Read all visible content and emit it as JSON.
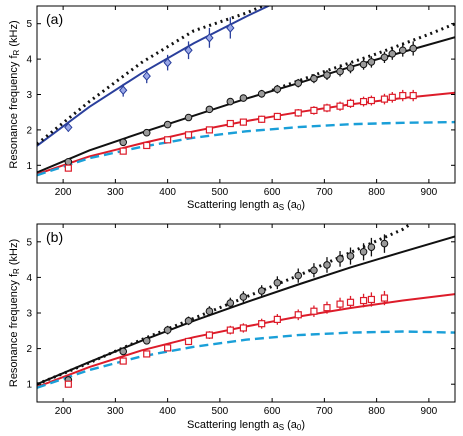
{
  "chart_data": [
    {
      "type": "scatter",
      "panel_label": "(a)",
      "xlabel": "Scattering length a",
      "xlabel_sub": "S",
      "xlabel_unit": "(a",
      "xlabel_unit_sub": "0",
      "xlabel_close": ")",
      "ylabel": "Resonance frequency f",
      "ylabel_sub": "R",
      "ylabel_unit": " (kHz)",
      "xlim": [
        150,
        950
      ],
      "ylim": [
        0.5,
        5.5
      ],
      "xticks": [
        200,
        300,
        400,
        500,
        600,
        700,
        800,
        900
      ],
      "yticks": [
        1,
        2,
        3,
        4,
        5
      ],
      "colors": {
        "blue": "#2a3f9c",
        "blue_fill": "#9aa8e8",
        "black": "#111111",
        "grey_fill": "#9a9a9a",
        "red": "#dd1c2a",
        "cyan": "#1a9fd8"
      },
      "series": [
        {
          "marker": "diamond",
          "color": "blue",
          "x": [
            210,
            315,
            360,
            400,
            440,
            480,
            520
          ],
          "y": [
            2.07,
            3.12,
            3.52,
            3.9,
            4.25,
            4.6,
            4.88
          ],
          "err": [
            0.12,
            0.18,
            0.2,
            0.22,
            0.25,
            0.28,
            0.3
          ]
        },
        {
          "marker": "circle",
          "color": "black",
          "x": [
            210,
            315,
            360,
            400,
            440,
            480,
            520,
            545,
            580,
            610,
            650,
            680,
            705,
            730,
            750,
            775,
            790,
            815,
            830,
            850,
            870
          ],
          "y": [
            1.1,
            1.65,
            1.92,
            2.15,
            2.35,
            2.58,
            2.8,
            2.9,
            3.02,
            3.15,
            3.32,
            3.45,
            3.55,
            3.65,
            3.75,
            3.85,
            3.92,
            4.05,
            4.15,
            4.25,
            4.3
          ],
          "err": [
            0.08,
            0.08,
            0.08,
            0.08,
            0.09,
            0.1,
            0.1,
            0.1,
            0.11,
            0.12,
            0.12,
            0.13,
            0.14,
            0.14,
            0.15,
            0.15,
            0.16,
            0.16,
            0.17,
            0.18,
            0.2
          ]
        },
        {
          "marker": "square",
          "color": "red",
          "x": [
            210,
            315,
            360,
            400,
            440,
            480,
            520,
            545,
            580,
            610,
            650,
            680,
            705,
            730,
            750,
            775,
            790,
            815,
            830,
            850,
            870
          ],
          "y": [
            0.92,
            1.4,
            1.56,
            1.72,
            1.86,
            2.0,
            2.18,
            2.22,
            2.3,
            2.38,
            2.48,
            2.55,
            2.62,
            2.67,
            2.75,
            2.8,
            2.83,
            2.87,
            2.92,
            2.97,
            2.97
          ],
          "err": [
            0.06,
            0.07,
            0.07,
            0.07,
            0.08,
            0.08,
            0.09,
            0.1,
            0.1,
            0.1,
            0.11,
            0.12,
            0.12,
            0.13,
            0.13,
            0.14,
            0.14,
            0.15,
            0.15,
            0.16,
            0.16
          ]
        }
      ],
      "curves": [
        {
          "style": "solid",
          "color": "blue",
          "x": [
            150,
            250,
            350,
            450,
            550,
            600
          ],
          "y": [
            1.55,
            2.65,
            3.6,
            4.45,
            5.2,
            5.55
          ]
        },
        {
          "style": "dotted",
          "color": "black",
          "x": [
            150,
            250,
            350,
            450,
            550,
            590
          ],
          "y": [
            1.6,
            2.8,
            3.9,
            4.8,
            5.3,
            5.55
          ]
        },
        {
          "style": "solid",
          "color": "black",
          "x": [
            150,
            250,
            350,
            450,
            550,
            650,
            750,
            850,
            950
          ],
          "y": [
            0.8,
            1.42,
            1.92,
            2.4,
            2.88,
            3.32,
            3.78,
            4.2,
            4.62
          ]
        },
        {
          "style": "dotted",
          "color": "black",
          "x": [
            600,
            700,
            800,
            900,
            950
          ],
          "y": [
            3.12,
            3.65,
            4.15,
            4.7,
            5.0
          ]
        },
        {
          "style": "solid",
          "color": "red",
          "x": [
            150,
            250,
            350,
            450,
            550,
            650,
            750,
            850,
            950
          ],
          "y": [
            0.75,
            1.25,
            1.62,
            1.96,
            2.25,
            2.5,
            2.72,
            2.9,
            3.05
          ]
        },
        {
          "style": "dashed",
          "color": "cyan",
          "x": [
            150,
            250,
            350,
            450,
            550,
            650,
            750,
            850,
            950
          ],
          "y": [
            0.72,
            1.2,
            1.52,
            1.78,
            1.96,
            2.08,
            2.16,
            2.2,
            2.22
          ]
        }
      ]
    },
    {
      "type": "scatter",
      "panel_label": "(b)",
      "xlabel": "Scattering length a",
      "xlabel_sub": "S",
      "xlabel_unit": "(a",
      "xlabel_unit_sub": "0",
      "xlabel_close": ")",
      "ylabel": "Resonance frequency f",
      "ylabel_sub": "R",
      "ylabel_unit": " (kHz)",
      "xlim": [
        150,
        950
      ],
      "ylim": [
        0.5,
        5.5
      ],
      "xticks": [
        200,
        300,
        400,
        500,
        600,
        700,
        800,
        900
      ],
      "yticks": [
        1,
        2,
        3,
        4,
        5
      ],
      "colors": {
        "black": "#111111",
        "grey_fill": "#9a9a9a",
        "red": "#dd1c2a",
        "cyan": "#1a9fd8"
      },
      "series": [
        {
          "marker": "circle",
          "color": "black",
          "x": [
            210,
            315,
            360,
            400,
            440,
            480,
            520,
            545,
            580,
            610,
            650,
            680,
            705,
            730,
            750,
            775,
            790,
            815
          ],
          "y": [
            1.12,
            1.92,
            2.22,
            2.52,
            2.78,
            3.05,
            3.28,
            3.45,
            3.62,
            3.85,
            4.05,
            4.2,
            4.35,
            4.52,
            4.6,
            4.72,
            4.85,
            4.95
          ],
          "err": [
            0.08,
            0.1,
            0.1,
            0.12,
            0.12,
            0.14,
            0.15,
            0.16,
            0.16,
            0.18,
            0.2,
            0.2,
            0.22,
            0.22,
            0.24,
            0.24,
            0.26,
            0.26
          ]
        },
        {
          "marker": "square",
          "color": "red",
          "x": [
            210,
            315,
            360,
            400,
            440,
            480,
            520,
            545,
            580,
            610,
            650,
            680,
            705,
            730,
            750,
            775,
            790,
            815
          ],
          "y": [
            1.0,
            1.65,
            1.85,
            2.02,
            2.2,
            2.38,
            2.52,
            2.58,
            2.7,
            2.82,
            2.95,
            3.05,
            3.15,
            3.25,
            3.3,
            3.35,
            3.38,
            3.42
          ],
          "err": [
            0.07,
            0.08,
            0.08,
            0.09,
            0.1,
            0.11,
            0.12,
            0.13,
            0.14,
            0.15,
            0.15,
            0.16,
            0.17,
            0.18,
            0.18,
            0.19,
            0.2,
            0.2
          ]
        }
      ],
      "curves": [
        {
          "style": "dotted",
          "color": "black",
          "x": [
            150,
            250,
            350,
            450,
            550,
            650,
            750,
            850,
            870
          ],
          "y": [
            1.0,
            1.6,
            2.25,
            2.85,
            3.45,
            4.05,
            4.7,
            5.35,
            5.55
          ]
        },
        {
          "style": "solid",
          "color": "black",
          "x": [
            150,
            250,
            350,
            450,
            550,
            650,
            750,
            850,
            950
          ],
          "y": [
            1.0,
            1.62,
            2.22,
            2.78,
            3.3,
            3.8,
            4.28,
            4.72,
            5.15
          ]
        },
        {
          "style": "solid",
          "color": "red",
          "x": [
            150,
            250,
            350,
            450,
            550,
            650,
            750,
            850,
            950
          ],
          "y": [
            0.92,
            1.48,
            1.95,
            2.32,
            2.62,
            2.9,
            3.14,
            3.35,
            3.53
          ]
        },
        {
          "style": "dashed",
          "color": "cyan",
          "x": [
            150,
            250,
            350,
            450,
            550,
            650,
            750,
            850,
            950
          ],
          "y": [
            0.9,
            1.4,
            1.78,
            2.05,
            2.25,
            2.38,
            2.45,
            2.48,
            2.45
          ]
        }
      ]
    }
  ]
}
